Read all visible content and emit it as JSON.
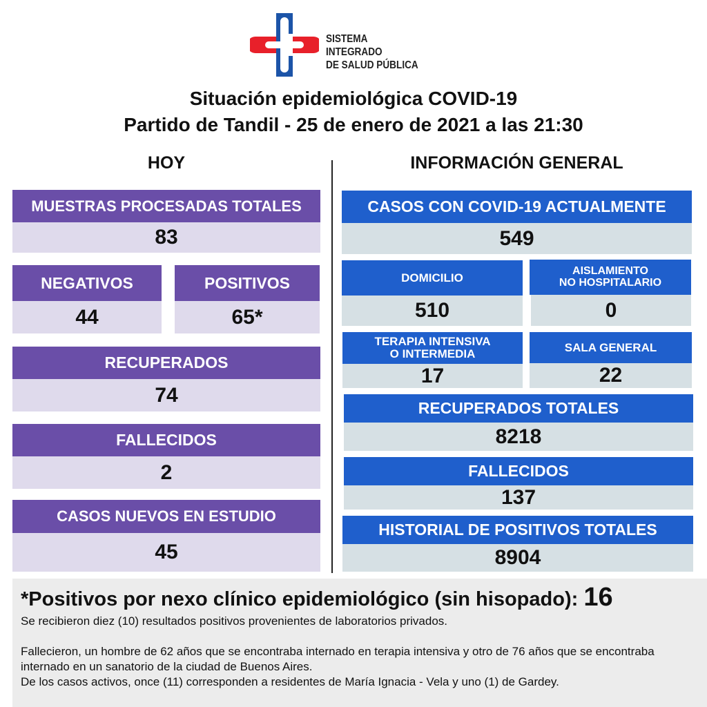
{
  "logo": {
    "line1": "SISTEMA INTEGRADO",
    "line2": "DE SALUD PÚBLICA",
    "colors": {
      "red": "#e8202a",
      "blue": "#1c54a8"
    }
  },
  "title": {
    "line1": "Situación epidemiológica COVID-19",
    "line2": "Partido de Tandil - 25 de enero de 2021 a las 21:30"
  },
  "hoy": {
    "heading": "HOY",
    "muestras": {
      "label": "MUESTRAS PROCESADAS TOTALES",
      "value": "83"
    },
    "negativos": {
      "label": "NEGATIVOS",
      "value": "44"
    },
    "positivos": {
      "label": "POSITIVOS",
      "value": "65*"
    },
    "recuperados": {
      "label": "RECUPERADOS",
      "value": "74"
    },
    "fallecidos": {
      "label": "FALLECIDOS",
      "value": "2"
    },
    "nuevos": {
      "label": "CASOS NUEVOS EN ESTUDIO",
      "value": "45"
    }
  },
  "general": {
    "heading": "INFORMACIÓN GENERAL",
    "activos": {
      "label": "CASOS CON COVID-19 ACTUALMENTE",
      "value": "549"
    },
    "domicilio": {
      "label": "DOMICILIO",
      "value": "510"
    },
    "aislamiento": {
      "label1": "AISLAMIENTO",
      "label2": "NO HOSPITALARIO",
      "value": "0"
    },
    "terapia": {
      "label1": "TERAPIA INTENSIVA",
      "label2": "O INTERMEDIA",
      "value": "17"
    },
    "sala": {
      "label": "SALA GENERAL",
      "value": "22"
    },
    "recuperados": {
      "label": "RECUPERADOS TOTALES",
      "value": "8218"
    },
    "fallecidos": {
      "label": "FALLECIDOS",
      "value": "137"
    },
    "historial": {
      "label": "HISTORIAL DE POSITIVOS TOTALES",
      "value": "8904"
    }
  },
  "notes": {
    "headline": "*Positivos por nexo clínico epidemiológico (sin hisopado):",
    "headline_value": "16",
    "p1": "Se recibieron diez (10) resultados positivos provenientes de laboratorios privados.",
    "p2": "Fallecieron, un hombre de 62 años que se encontraba internado en terapia intensiva y otro de 76 años que se encontraba internado en un sanatorio de  la ciudad de Buenos Aires.",
    "p3": "De los casos activos, once (11) corresponden a residentes de María Ignacia - Vela y uno (1) de Gardey."
  },
  "colors": {
    "purple_header": "#6a4ea8",
    "purple_value": "#dfdaec",
    "blue_header": "#1f5fcc",
    "blue_value": "#d6e0e4"
  }
}
